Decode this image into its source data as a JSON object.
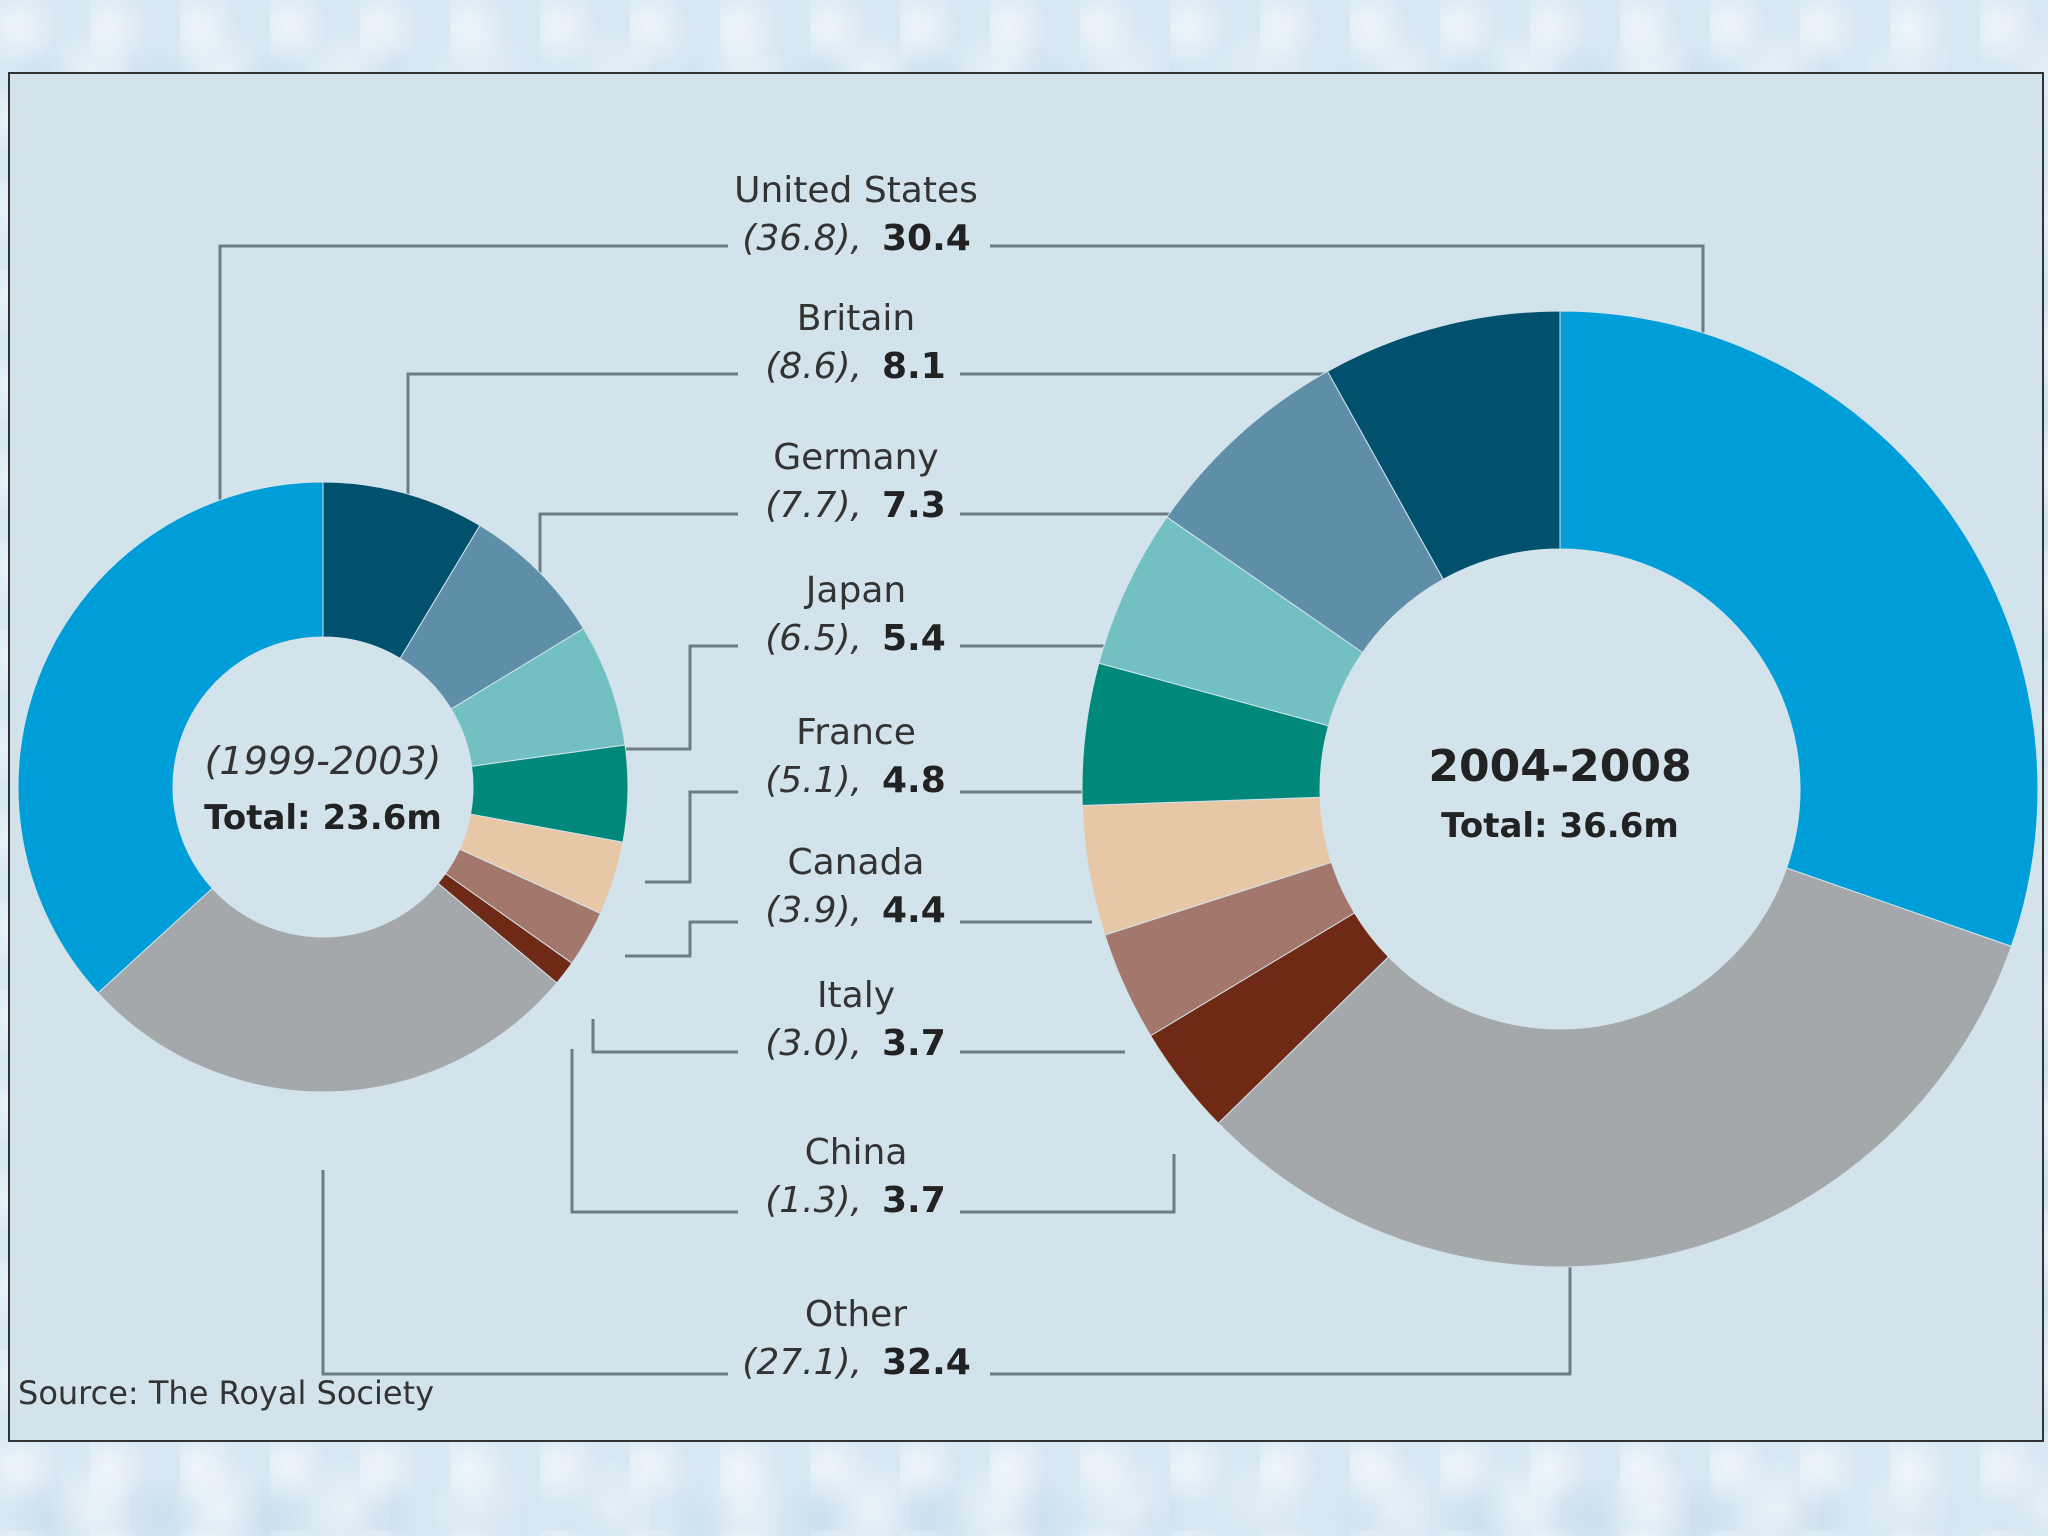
{
  "chart_data": {
    "type": "pie",
    "source": "Source: The Royal Society",
    "rings": [
      {
        "period": "(1999-2003)",
        "total": "Total: 23.6m"
      },
      {
        "period": "2004-2008",
        "total": "Total: 36.6m"
      }
    ],
    "colors": {
      "United States": "#009ed8",
      "Britain": "#00506e",
      "Germany": "#5f8fa8",
      "Japan": "#73c0c2",
      "France": "#00897a",
      "Canada": "#e7c8a6",
      "Italy": "#a3776b",
      "China": "#6e2a14",
      "Other": "#a5a8aa"
    },
    "series": [
      {
        "name": "United States",
        "old": 36.8,
        "new": 30.4,
        "old_text": "(36.8),",
        "new_text": "30.4"
      },
      {
        "name": "Britain",
        "old": 8.6,
        "new": 8.1,
        "old_text": "(8.6),",
        "new_text": "8.1"
      },
      {
        "name": "Germany",
        "old": 7.7,
        "new": 7.3,
        "old_text": "(7.7),",
        "new_text": "7.3"
      },
      {
        "name": "Japan",
        "old": 6.5,
        "new": 5.4,
        "old_text": "(6.5),",
        "new_text": "5.4"
      },
      {
        "name": "France",
        "old": 5.1,
        "new": 4.8,
        "old_text": "(5.1),",
        "new_text": "4.8"
      },
      {
        "name": "Canada",
        "old": 3.9,
        "new": 4.4,
        "old_text": "(3.9),",
        "new_text": "4.4"
      },
      {
        "name": "Italy",
        "old": 3.0,
        "new": 3.7,
        "old_text": "(3.0),",
        "new_text": "3.7"
      },
      {
        "name": "China",
        "old": 1.3,
        "new": 3.7,
        "old_text": "(1.3),",
        "new_text": "3.7"
      },
      {
        "name": "Other",
        "old": 27.1,
        "new": 32.4,
        "old_text": "(27.1),",
        "new_text": "32.4"
      }
    ]
  }
}
